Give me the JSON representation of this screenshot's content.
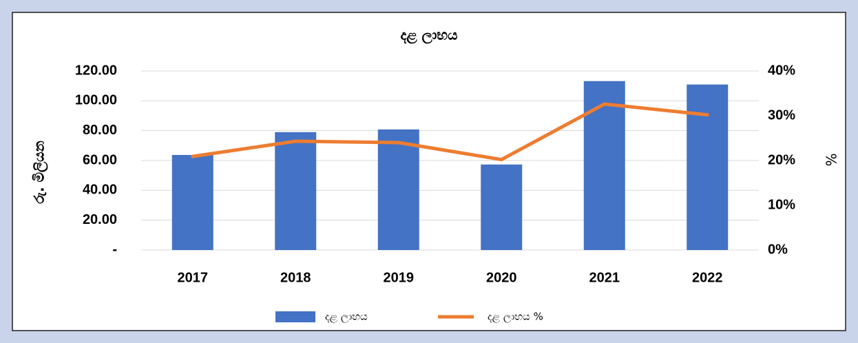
{
  "chart_data": {
    "type": "bar",
    "title": "දළ ලාභය",
    "y_label": "රු. මිලියන",
    "y2_label": "%",
    "categories": [
      "2017",
      "2018",
      "2019",
      "2020",
      "2021",
      "2022"
    ],
    "series": [
      {
        "name": "දළ ලාභය",
        "type": "bar",
        "color": "#4472c4",
        "values": [
          63.7,
          79.0,
          80.8,
          57.3,
          113.2,
          110.9
        ]
      },
      {
        "name": "දළ ලාභය %",
        "type": "line",
        "axis": "y2",
        "color": "#ed7d31",
        "values": [
          20.9,
          24.3,
          24.0,
          20.2,
          32.6,
          30.2
        ]
      }
    ],
    "ylim": [
      0,
      120
    ],
    "yticks": [
      {
        "value": 0,
        "label": "-"
      },
      {
        "value": 20,
        "label": "20.00"
      },
      {
        "value": 40,
        "label": "40.00"
      },
      {
        "value": 60,
        "label": "60.00"
      },
      {
        "value": 80,
        "label": "80.00"
      },
      {
        "value": 100,
        "label": "100.00"
      },
      {
        "value": 120,
        "label": "120.00"
      }
    ],
    "y2lim": [
      0,
      40
    ],
    "y2ticks": [
      {
        "value": 0,
        "label": "0%"
      },
      {
        "value": 10,
        "label": "10%"
      },
      {
        "value": 20,
        "label": "20%"
      },
      {
        "value": 30,
        "label": "30%"
      },
      {
        "value": 40,
        "label": "40%"
      }
    ],
    "grid": true,
    "legend": "bottom"
  }
}
